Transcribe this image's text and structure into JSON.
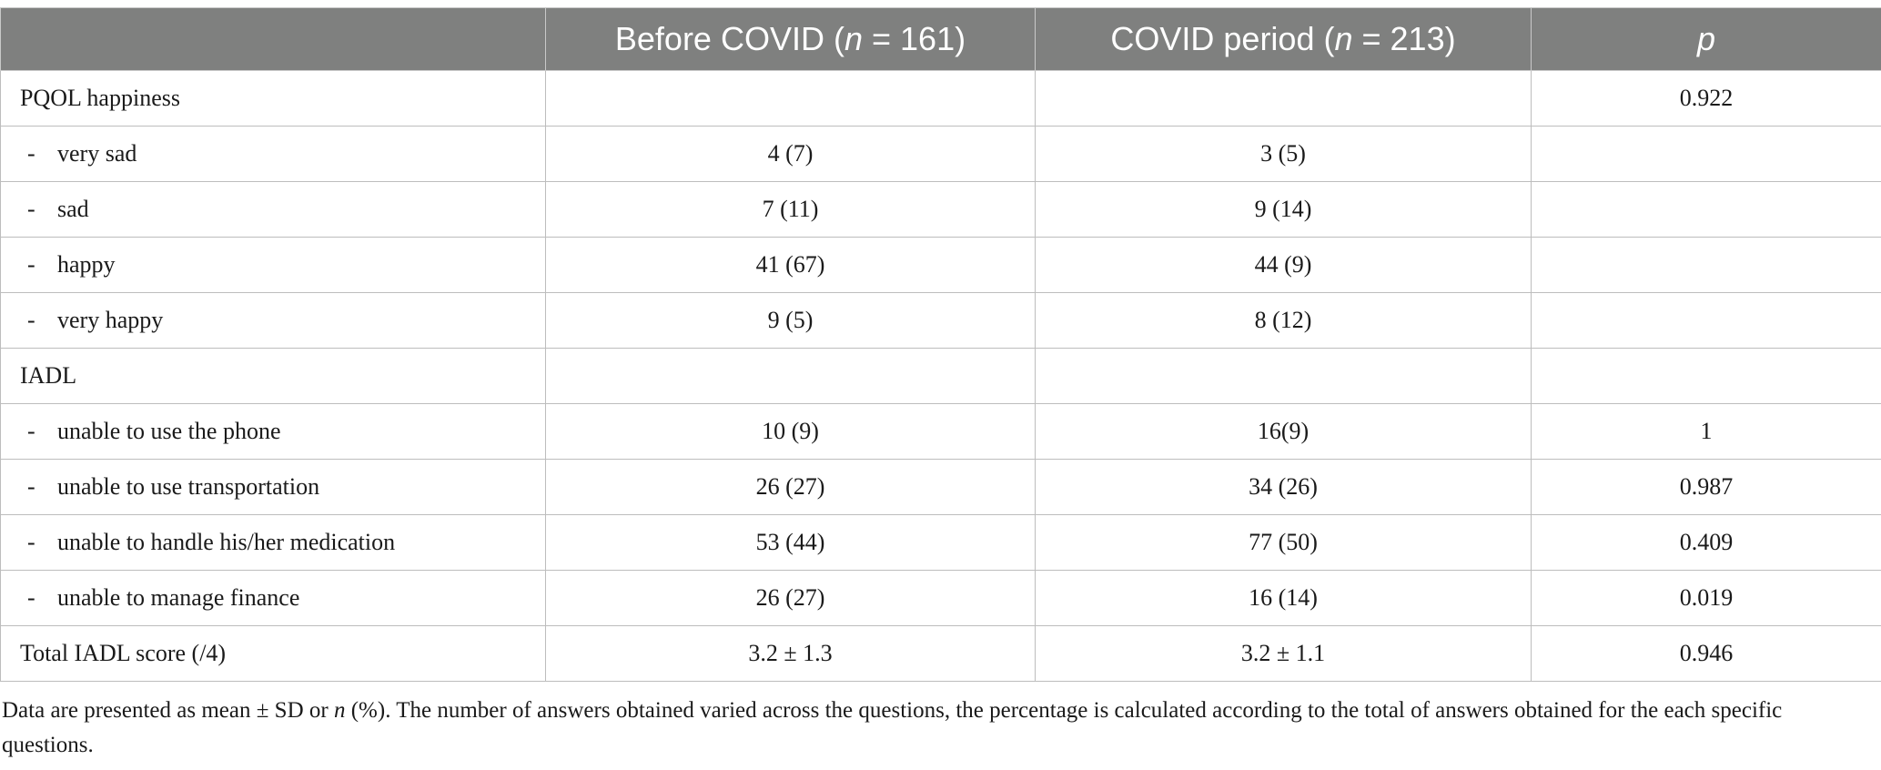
{
  "table": {
    "headers": {
      "col0": "",
      "col1_prefix": "Before COVID (",
      "col1_n": "n",
      "col1_suffix": " = 161)",
      "col2_prefix": "COVID period (",
      "col2_n": "n",
      "col2_suffix": " = 213)",
      "col3": "p"
    },
    "rows": [
      {
        "label": "PQOL happiness",
        "sub": false,
        "before": "",
        "covid": "",
        "p": "0.922"
      },
      {
        "label": "very sad",
        "sub": true,
        "before": "4 (7)",
        "covid": "3 (5)",
        "p": ""
      },
      {
        "label": "sad",
        "sub": true,
        "before": "7 (11)",
        "covid": "9 (14)",
        "p": ""
      },
      {
        "label": "happy",
        "sub": true,
        "before": "41 (67)",
        "covid": "44 (9)",
        "p": ""
      },
      {
        "label": "very happy",
        "sub": true,
        "before": "9 (5)",
        "covid": "8 (12)",
        "p": ""
      },
      {
        "label": "IADL",
        "sub": false,
        "before": "",
        "covid": "",
        "p": ""
      },
      {
        "label": "unable to use the phone",
        "sub": true,
        "before": "10 (9)",
        "covid": "16(9)",
        "p": "1"
      },
      {
        "label": "unable to use transportation",
        "sub": true,
        "before": "26 (27)",
        "covid": "34 (26)",
        "p": "0.987"
      },
      {
        "label": "unable to handle his/her medication",
        "sub": true,
        "before": "53 (44)",
        "covid": "77 (50)",
        "p": "0.409"
      },
      {
        "label": "unable to manage finance",
        "sub": true,
        "before": "26 (27)",
        "covid": "16 (14)",
        "p": "0.019"
      },
      {
        "label": "Total IADL score (/4)",
        "sub": false,
        "before": "3.2 ± 1.3",
        "covid": "3.2 ± 1.1",
        "p": "0.946"
      }
    ],
    "dash": "-"
  },
  "footnote": {
    "part1": "Data are presented as mean ± SD or ",
    "n_italic": "n",
    "part2": " (%). The number of answers obtained varied across the questions, the percentage is calculated according to the total of answers obtained for the each specific questions."
  }
}
